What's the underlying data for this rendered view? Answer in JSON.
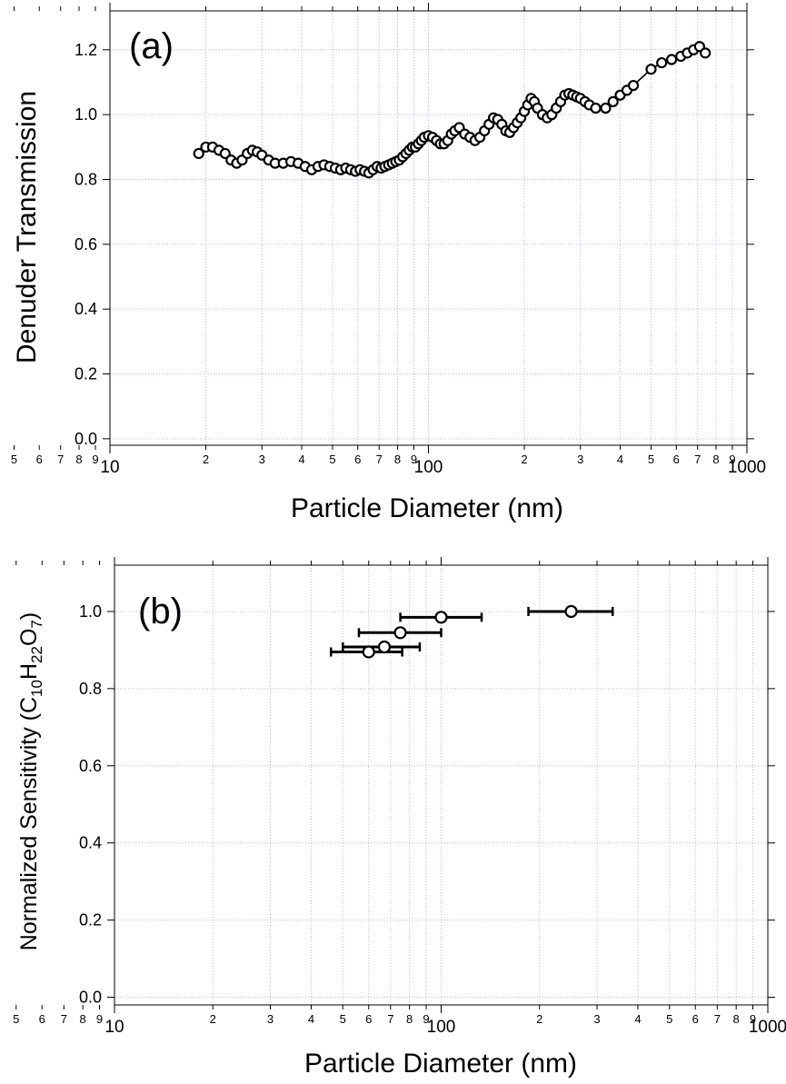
{
  "chart_data": [
    {
      "type": "scatter",
      "panel_label": "(a)",
      "xlabel": "Particle Diameter (nm)",
      "ylabel": "Denuder Transmission",
      "xscale": "log",
      "xlim": [
        10,
        1000
      ],
      "ylim": [
        -0.02,
        1.32
      ],
      "x_major_ticks": [
        10,
        100,
        1000
      ],
      "x_major_tick_labels": [
        "10",
        "100",
        "1000"
      ],
      "x_minor_ticks": [
        2,
        3,
        4,
        5,
        6,
        7,
        8,
        9,
        20,
        30,
        40,
        50,
        60,
        70,
        80,
        90,
        200,
        300,
        400,
        500,
        600,
        700,
        800,
        900
      ],
      "x_minor_tick_labels": [
        "2",
        "3",
        "4",
        "5",
        "6",
        "7",
        "8",
        "9"
      ],
      "y_ticks": [
        0.0,
        0.2,
        0.4,
        0.6,
        0.8,
        1.0,
        1.2
      ],
      "y_tick_labels": [
        "0.0",
        "0.2",
        "0.4",
        "0.6",
        "0.8",
        "1.0",
        "1.2"
      ],
      "grid": true,
      "marker": "open-circle",
      "connected": true,
      "series": [
        {
          "x": [
            19,
            20,
            21,
            22,
            23,
            24,
            25,
            26,
            27,
            28,
            29,
            30,
            31.5,
            33,
            35,
            37,
            39,
            41,
            43,
            45,
            47,
            49,
            51,
            53,
            55,
            57,
            59,
            61,
            63,
            65,
            67,
            69,
            71,
            73,
            75,
            77,
            79,
            81,
            83,
            85,
            87,
            89,
            91,
            93,
            95,
            97,
            100,
            103,
            106,
            109,
            112,
            115,
            118,
            121,
            125,
            130,
            135,
            140,
            145,
            150,
            155,
            160,
            165,
            170,
            175,
            180,
            185,
            190,
            195,
            200,
            205,
            210,
            215,
            220,
            228,
            236,
            244,
            252,
            260,
            268,
            276,
            284,
            292,
            300,
            310,
            320,
            335,
            360,
            380,
            400,
            420,
            440,
            500,
            540,
            580,
            620,
            650,
            680,
            710,
            740
          ],
          "y": [
            0.88,
            0.9,
            0.9,
            0.89,
            0.88,
            0.86,
            0.85,
            0.86,
            0.88,
            0.89,
            0.885,
            0.875,
            0.86,
            0.85,
            0.85,
            0.855,
            0.85,
            0.84,
            0.83,
            0.84,
            0.845,
            0.84,
            0.835,
            0.83,
            0.835,
            0.83,
            0.825,
            0.83,
            0.825,
            0.82,
            0.83,
            0.84,
            0.835,
            0.84,
            0.845,
            0.85,
            0.855,
            0.86,
            0.87,
            0.88,
            0.89,
            0.9,
            0.9,
            0.91,
            0.92,
            0.93,
            0.935,
            0.93,
            0.92,
            0.91,
            0.91,
            0.92,
            0.94,
            0.95,
            0.96,
            0.94,
            0.93,
            0.92,
            0.93,
            0.95,
            0.97,
            0.99,
            0.985,
            0.97,
            0.95,
            0.945,
            0.96,
            0.975,
            0.99,
            1.01,
            1.03,
            1.05,
            1.04,
            1.02,
            1.0,
            0.99,
            1.0,
            1.02,
            1.04,
            1.06,
            1.065,
            1.06,
            1.055,
            1.05,
            1.04,
            1.03,
            1.02,
            1.02,
            1.04,
            1.06,
            1.075,
            1.09,
            1.14,
            1.16,
            1.17,
            1.18,
            1.19,
            1.2,
            1.21,
            1.19
          ]
        }
      ]
    },
    {
      "type": "scatter",
      "panel_label": "(b)",
      "xlabel": "Particle Diameter (nm)",
      "ylabel_parts": [
        "Normalized Sensitivity (C",
        "10",
        "H",
        "22",
        "O",
        "7",
        ")"
      ],
      "xscale": "log",
      "xlim": [
        10,
        1000
      ],
      "ylim": [
        -0.02,
        1.12
      ],
      "x_major_ticks": [
        10,
        100,
        1000
      ],
      "x_major_tick_labels": [
        "10",
        "100",
        "1000"
      ],
      "x_minor_ticks": [
        2,
        3,
        4,
        5,
        6,
        7,
        8,
        9,
        20,
        30,
        40,
        50,
        60,
        70,
        80,
        90,
        200,
        300,
        400,
        500,
        600,
        700,
        800,
        900
      ],
      "x_minor_tick_labels": [
        "2",
        "3",
        "4",
        "5",
        "6",
        "7",
        "8",
        "9"
      ],
      "y_ticks": [
        0.0,
        0.2,
        0.4,
        0.6,
        0.8,
        1.0
      ],
      "y_tick_labels": [
        "0.0",
        "0.2",
        "0.4",
        "0.6",
        "0.8",
        "1.0"
      ],
      "grid": true,
      "marker": "open-circle",
      "connected": false,
      "series": [
        {
          "x": [
            60,
            67,
            75,
            100,
            250
          ],
          "y": [
            0.895,
            0.908,
            0.945,
            0.985,
            1.0
          ],
          "x_err_low": [
            46,
            50,
            56,
            75,
            185
          ],
          "x_err_high": [
            76,
            86,
            100,
            133,
            335
          ]
        }
      ]
    }
  ],
  "style": {
    "axis_color": "#000000",
    "grid_color": "#b8b8e8",
    "marker_fill": "#ffffff",
    "marker_stroke": "#000000"
  }
}
